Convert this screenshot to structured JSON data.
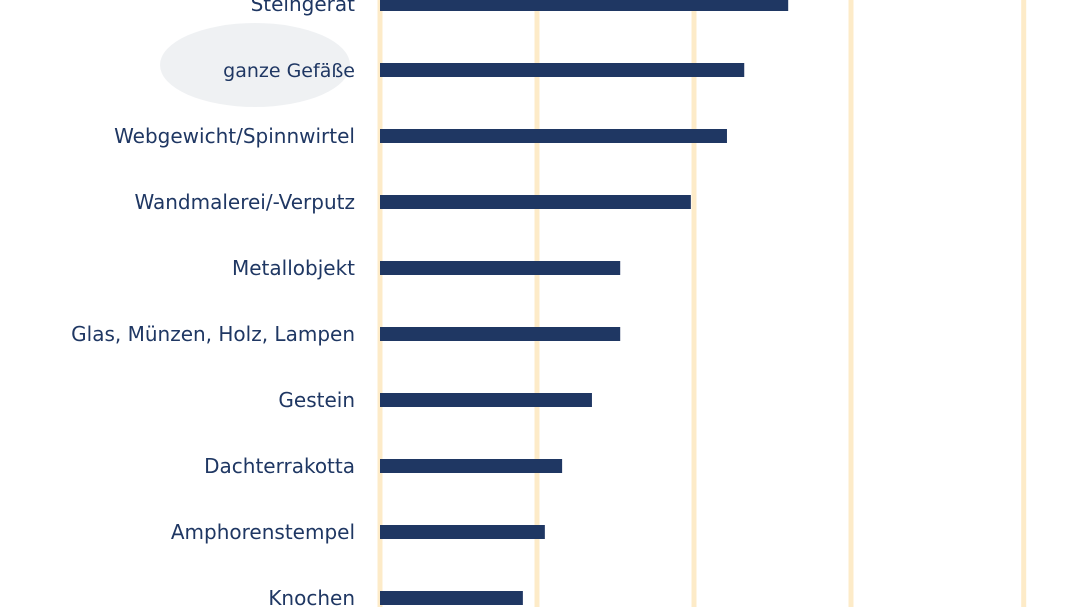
{
  "chart_data": {
    "type": "bar",
    "orientation": "horizontal",
    "categories": [
      "Steingerät",
      "ganze Gefäße",
      "Webgewicht/Spinnwirtel",
      "Wandmalerei/-Verputz",
      "Metallobjekt",
      "Glas, Münzen, Holz, Lampen",
      "Gestein",
      "Dachterrakotta",
      "Amphorenstempel",
      "Knochen"
    ],
    "values": [
      26,
      23.2,
      22.1,
      19.8,
      15.3,
      15.3,
      13.5,
      11.6,
      10.5,
      9.1
    ],
    "xlim": [
      0,
      41.5
    ],
    "gridlines": [
      0,
      10,
      20,
      30,
      41
    ],
    "grid": true,
    "title": "",
    "xlabel": "",
    "ylabel": ""
  },
  "colors": {
    "bar": "#1f3763",
    "label": "#1f3763",
    "grid": "#fdebc8"
  }
}
